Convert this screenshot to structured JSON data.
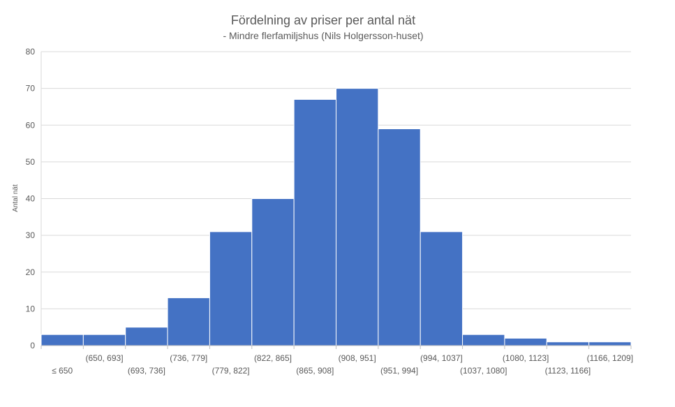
{
  "chart_data": {
    "type": "bar",
    "title": "Fördelning av priser per antal nät",
    "subtitle": "- Mindre flerfamiljshus (Nils Holgersson-huset)",
    "xlabel": "",
    "ylabel": "Antal nät",
    "ylim": [
      0,
      80
    ],
    "yticks": [
      0,
      10,
      20,
      30,
      40,
      50,
      60,
      70,
      80
    ],
    "grid": true,
    "bar_color": "#4472C4",
    "categories": [
      "≤ 650",
      "(650, 693]",
      "(693, 736]",
      "(736, 779]",
      "(779, 822]",
      "(822, 865]",
      "(865, 908]",
      "(908, 951]",
      "(951, 994]",
      "(994, 1037]",
      "(1037, 1080]",
      "(1080, 1123]",
      "(1123, 1166]",
      "(1166, 1209]"
    ],
    "values": [
      3,
      3,
      5,
      13,
      31,
      40,
      67,
      70,
      59,
      31,
      3,
      2,
      1,
      1
    ]
  }
}
